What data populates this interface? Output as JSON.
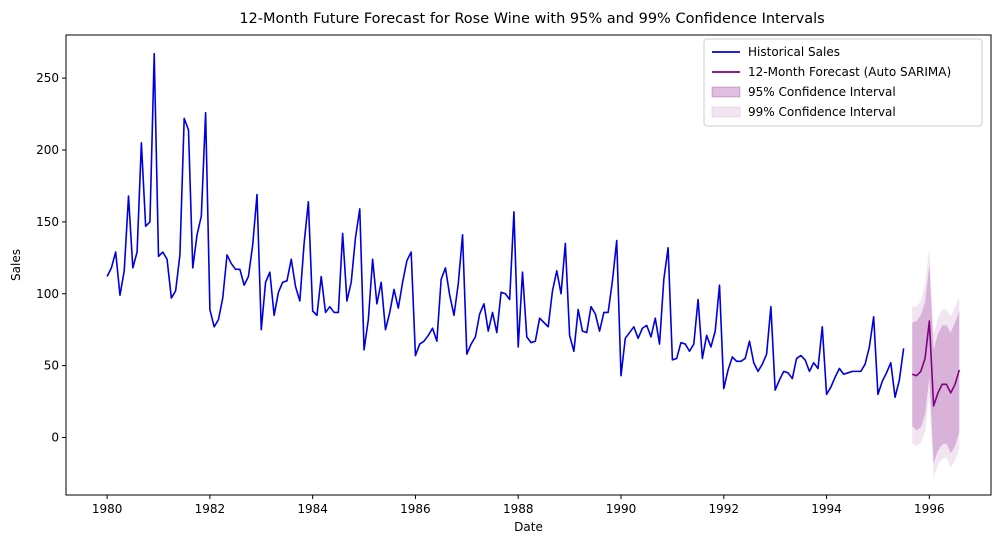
{
  "chart_data": {
    "type": "line",
    "title": "12-Month Future Forecast for Rose Wine with 95% and 99% Confidence Intervals",
    "xlabel": "Date",
    "ylabel": "Sales",
    "xlim": [
      1979.2,
      1997.2
    ],
    "ylim": [
      -40,
      280
    ],
    "xticks": [
      1980,
      1982,
      1984,
      1986,
      1988,
      1990,
      1992,
      1994,
      1996
    ],
    "yticks": [
      0,
      50,
      100,
      150,
      200,
      250
    ],
    "grid": false,
    "legend_position": "top-right",
    "historical": {
      "name": "Historical Sales",
      "color": "#0000dd",
      "start": 1980.0,
      "step_months": 1,
      "values": [
        112,
        118,
        129,
        99,
        116,
        168,
        118,
        129,
        205,
        147,
        150,
        267,
        126,
        129,
        124,
        97,
        102,
        127,
        222,
        214,
        118,
        141,
        154,
        226,
        89,
        77,
        82,
        97,
        127,
        121,
        117,
        117,
        106,
        112,
        134,
        169,
        75,
        108,
        115,
        85,
        101,
        108,
        109,
        124,
        105,
        95,
        135,
        164,
        88,
        85,
        112,
        87,
        91,
        87,
        87,
        142,
        95,
        108,
        139,
        159,
        61,
        82,
        124,
        93,
        108,
        75,
        87,
        103,
        90,
        108,
        123,
        129,
        57,
        65,
        67,
        71,
        76,
        67,
        110,
        118,
        99,
        85,
        107,
        141,
        58,
        65,
        70,
        86,
        93,
        74,
        87,
        73,
        101,
        100,
        96,
        157,
        63,
        115,
        70,
        66,
        67,
        83,
        80,
        77,
        102,
        116,
        100,
        135,
        71,
        60,
        89,
        74,
        73,
        91,
        86,
        74,
        87,
        87,
        109,
        137,
        43,
        69,
        73,
        77,
        69,
        76,
        78,
        70,
        83,
        65,
        110,
        132,
        54,
        55,
        66,
        65,
        60,
        65,
        96,
        55,
        71,
        63,
        74,
        106,
        34,
        47,
        56,
        53,
        53,
        55,
        67,
        52,
        46,
        51,
        58,
        91,
        33,
        40,
        46,
        45,
        41,
        55,
        57,
        54,
        46,
        52,
        48,
        77,
        30,
        35,
        42,
        48,
        44,
        45,
        46,
        46,
        46,
        51,
        63,
        84,
        30,
        39,
        45,
        52,
        28,
        40,
        62
      ]
    },
    "forecast": {
      "name": "12-Month Forecast (Auto SARIMA)",
      "color": "#800080",
      "start": 1995.6667,
      "step_months": 1,
      "values": [
        44,
        43,
        46,
        55,
        81,
        22,
        31,
        37,
        37,
        31,
        37,
        47
      ],
      "ci95_lower": [
        8,
        5,
        7,
        16,
        42,
        -18,
        -9,
        -5,
        -4,
        -11,
        -6,
        4
      ],
      "ci95_upper": [
        80,
        81,
        85,
        94,
        120,
        61,
        72,
        78,
        78,
        73,
        80,
        88
      ],
      "ci99_lower": [
        -4,
        -6,
        -4,
        4,
        30,
        -28,
        -19,
        -15,
        -14,
        -21,
        -16,
        -8
      ],
      "ci99_upper": [
        91,
        91,
        95,
        106,
        132,
        72,
        83,
        89,
        89,
        84,
        91,
        98
      ]
    },
    "legend": [
      {
        "label": "Historical Sales",
        "kind": "line",
        "color": "#0000dd"
      },
      {
        "label": "12-Month Forecast (Auto SARIMA)",
        "kind": "line",
        "color": "#800080"
      },
      {
        "label": "95% Confidence Interval",
        "kind": "band",
        "color": "#800080",
        "fill_opacity": 0.25
      },
      {
        "label": "99% Confidence Interval",
        "kind": "band",
        "color": "#800080",
        "fill_opacity": 0.1
      }
    ]
  }
}
